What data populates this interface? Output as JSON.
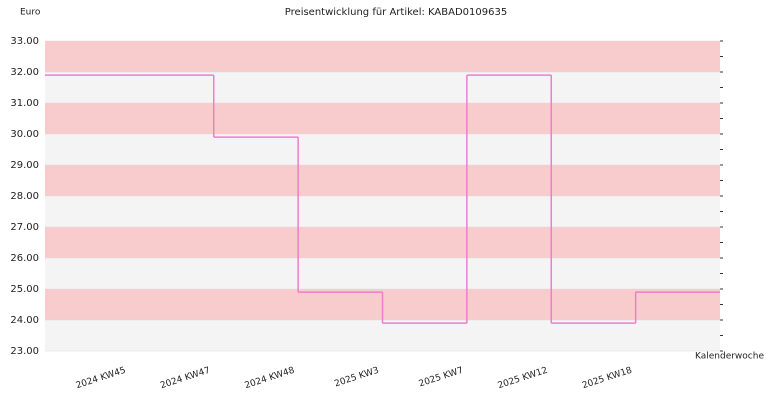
{
  "chart_data": {
    "type": "step",
    "title": "Preisentwicklung für Artikel: KABAD0109635",
    "y_label": "Euro",
    "x_label": "Kalenderwoche",
    "categories": [
      null,
      "2024 KW45",
      "2024 KW47",
      "2024 KW48",
      "2025 KW3",
      "2025 KW7",
      "2025 KW12",
      "2025 KW18"
    ],
    "series": [
      {
        "color": "#f07ccf",
        "values": [
          31.9,
          31.9,
          29.9,
          24.9,
          23.9,
          31.9,
          23.9,
          24.9
        ]
      }
    ],
    "ylim": [
      23,
      33
    ],
    "yticks": [
      {
        "value": 23,
        "label": "23.00"
      },
      {
        "value": 24,
        "label": "24.00"
      },
      {
        "value": 25,
        "label": "25.00"
      },
      {
        "value": 26,
        "label": "26.00"
      },
      {
        "value": 27,
        "label": "27.00"
      },
      {
        "value": 28,
        "label": "28.00"
      },
      {
        "value": 29,
        "label": "29.00"
      },
      {
        "value": 30,
        "label": "30.00"
      },
      {
        "value": 31,
        "label": "31.00"
      },
      {
        "value": 32,
        "label": "32.00"
      },
      {
        "value": 33,
        "label": "33.00"
      }
    ],
    "band_colors": [
      "#f4f4f4",
      "#f8cccc"
    ]
  }
}
